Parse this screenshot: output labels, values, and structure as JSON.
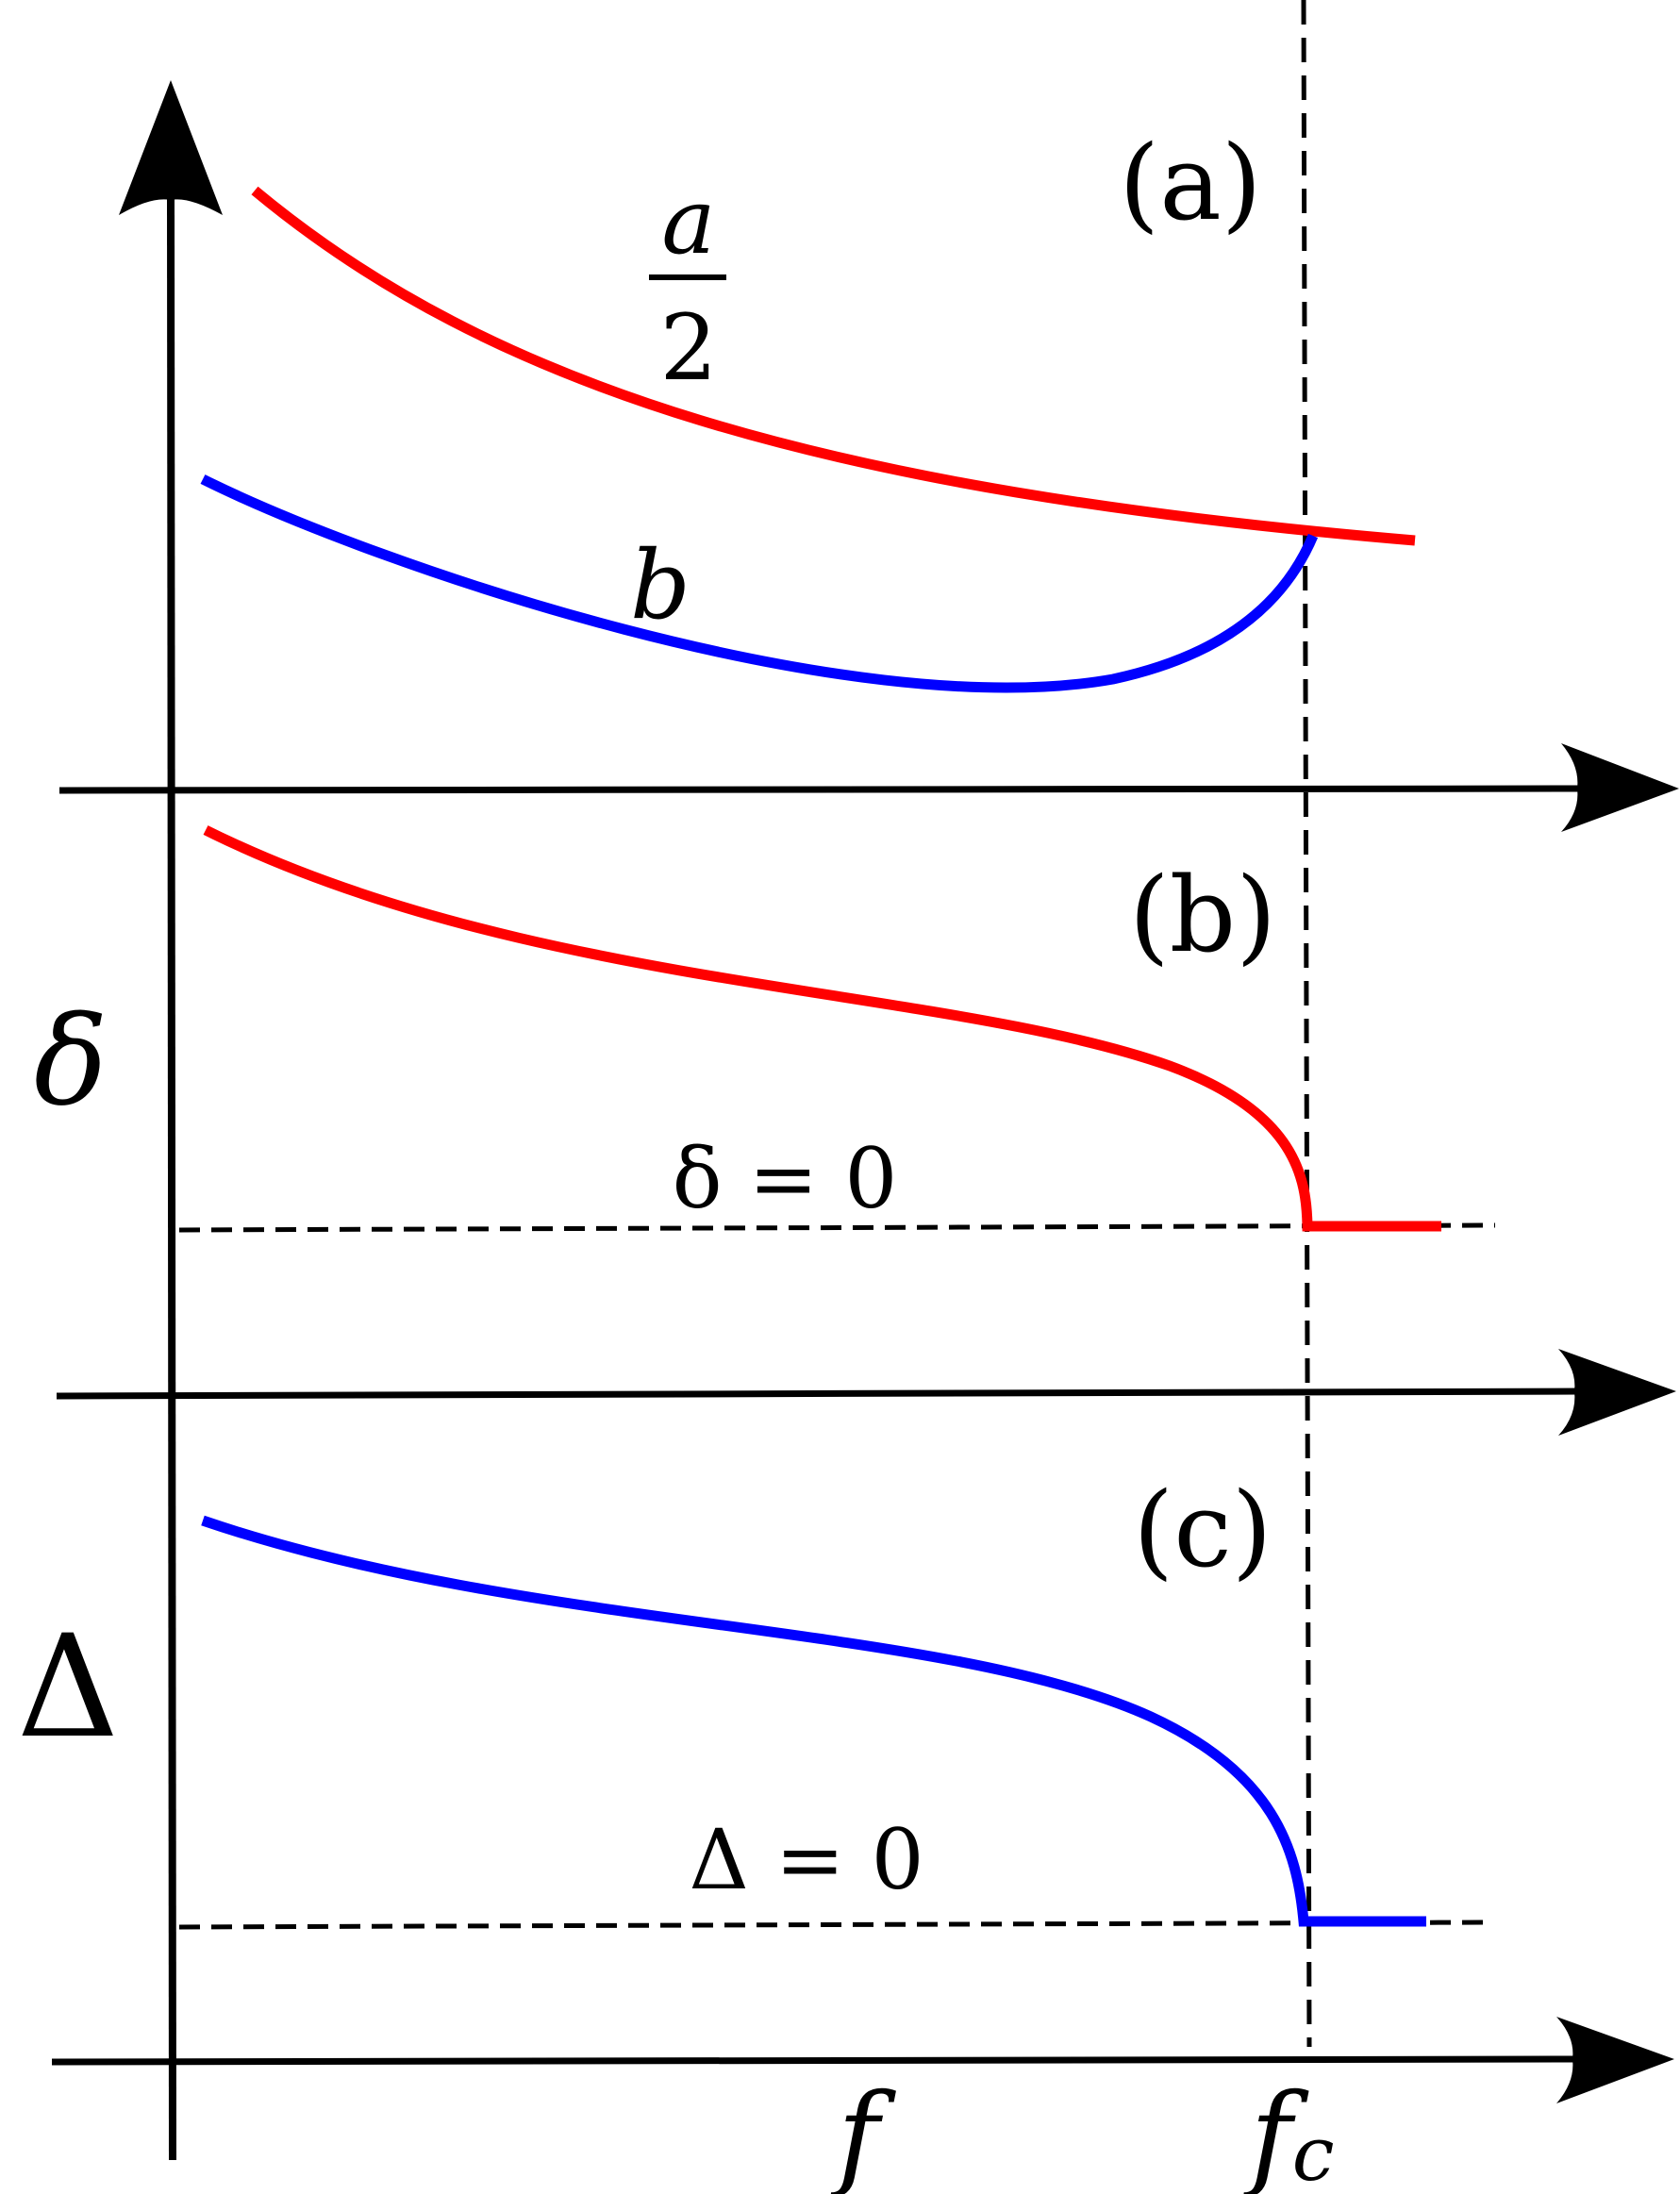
{
  "panels": [
    {
      "label": "(a)",
      "curves": [
        {
          "name": "a/2",
          "color": "#ff0000"
        },
        {
          "name": "b",
          "color": "#0000ff"
        }
      ]
    },
    {
      "label": "(b)",
      "ylabel": "δ",
      "baseline": "δ = 0",
      "curve_color": "#ff0000"
    },
    {
      "label": "(c)",
      "ylabel": "Δ",
      "baseline": "Δ = 0",
      "curve_color": "#0000ff"
    }
  ],
  "labels": {
    "a_numerator": "a",
    "a_denominator": "2",
    "b": "b",
    "delta": "δ",
    "Delta": "Δ",
    "delta_zero": "δ = 0",
    "Delta_zero": "Δ = 0",
    "x_f": "f",
    "x_fc_base": "f",
    "x_fc_sub": "c",
    "panel_a": "(a)",
    "panel_b": "(b)",
    "panel_c": "(c)"
  },
  "colors": {
    "red": "#ff0000",
    "blue": "#0000ff",
    "axis": "#000000"
  }
}
